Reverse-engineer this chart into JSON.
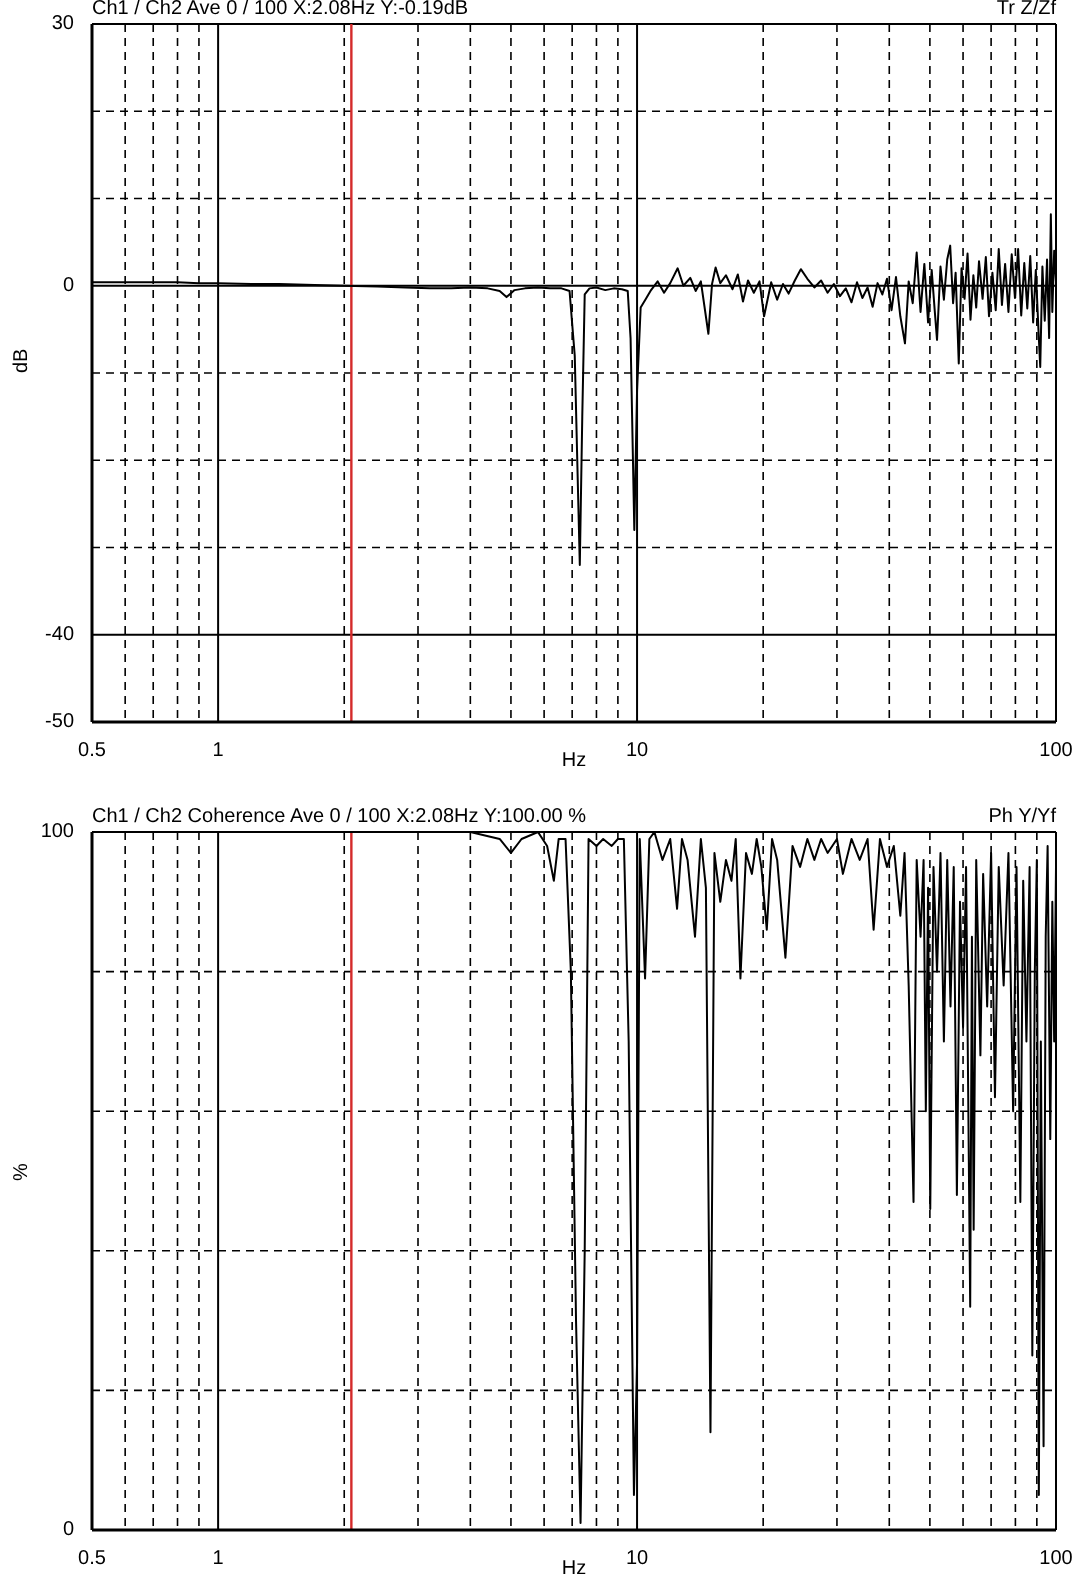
{
  "chart_data": [
    {
      "type": "line",
      "title": "Ch1 / Ch2 Ave 0 / 100 X:2.08Hz Y:-0.19dB",
      "annotations": [
        "Tr Z/Zf"
      ],
      "xlabel": "Hz",
      "ylabel": "dB",
      "log": "x",
      "grid": true,
      "color": "#000000",
      "xlim": [
        0.5,
        100
      ],
      "xticks": [
        0.5,
        {
          "value": 0.6,
          "label": null
        },
        {
          "value": 0.7,
          "label": null
        },
        {
          "value": 0.8,
          "label": null
        },
        {
          "value": 0.9,
          "label": null
        },
        1,
        {
          "value": 2,
          "label": null
        },
        {
          "value": 3,
          "label": null
        },
        {
          "value": 4,
          "label": null
        },
        {
          "value": 5,
          "label": null
        },
        {
          "value": 6,
          "label": null
        },
        {
          "value": 7,
          "label": null
        },
        {
          "value": 8,
          "label": null
        },
        {
          "value": 9,
          "label": null
        },
        10,
        {
          "value": 20,
          "label": null
        },
        {
          "value": 30,
          "label": null
        },
        {
          "value": 40,
          "label": null
        },
        {
          "value": 50,
          "label": null
        },
        {
          "value": 60,
          "label": null
        },
        {
          "value": 70,
          "label": null
        },
        {
          "value": 80,
          "label": null
        },
        {
          "value": 90,
          "label": null
        },
        100
      ],
      "ylim": [
        -50,
        30
      ],
      "yticks": [
        -50,
        -40,
        {
          "value": -30,
          "label": null
        },
        {
          "value": -20,
          "label": null
        },
        {
          "value": -10,
          "label": null
        },
        0,
        {
          "value": 10,
          "label": null
        },
        {
          "value": 20,
          "label": null
        },
        30
      ],
      "ref_lines": [
        {
          "axis": "x",
          "value": 2.08,
          "color": "#d42a2a"
        }
      ],
      "x": [
        0.5,
        0.55,
        0.6,
        0.7,
        0.8,
        0.9,
        1,
        1.2,
        1.4,
        1.7,
        2.0,
        2.4,
        2.8,
        3.2,
        3.6,
        4.0,
        4.4,
        4.7,
        4.88,
        5.1,
        5.4,
        5.8,
        6.2,
        6.6,
        6.9,
        7.1,
        7.3,
        7.4,
        7.5,
        7.7,
        8.0,
        8.4,
        8.8,
        9.2,
        9.5,
        9.65,
        9.85,
        10.0,
        10.2,
        10.5,
        10.8,
        11.2,
        11.6,
        12.0,
        12.5,
        12.9,
        13.4,
        13.8,
        14.2,
        14.8,
        15.1,
        15.4,
        15.8,
        16.3,
        16.9,
        17.4,
        17.9,
        18.4,
        19,
        19.6,
        20.1,
        20.9,
        21.6,
        22.3,
        23,
        23.8,
        24.6,
        25.5,
        26.5,
        27.5,
        28.5,
        29.5,
        30.5,
        31.5,
        32.5,
        33.5,
        34.5,
        35.5,
        36.5,
        37.5,
        38.5,
        39.5,
        40.5,
        41.5,
        42.5,
        43.6,
        44.5,
        45.5,
        46.5,
        47.5,
        48.5,
        49.5,
        50.5,
        51.3,
        52,
        53,
        54,
        55,
        55.9,
        56.8,
        57.6,
        58.6,
        59.5,
        60.5,
        61.5,
        62.5,
        63.5,
        64.5,
        65.5,
        66.8,
        68,
        69.2,
        70.5,
        71.8,
        73,
        74.3,
        75.6,
        77,
        78.4,
        79.8,
        81.2,
        82.6,
        84,
        85.4,
        86.8,
        88.2,
        89.5,
        90.8,
        91.7,
        92.8,
        94,
        95.2,
        96.3,
        97.2,
        98,
        99,
        100
      ],
      "values": [
        0.4,
        0.4,
        0.4,
        0.4,
        0.4,
        0.3,
        0.3,
        0.2,
        0.2,
        0.1,
        0,
        -0.1,
        -0.2,
        -0.3,
        -0.3,
        -0.2,
        -0.3,
        -0.6,
        -1.3,
        -0.5,
        -0.3,
        -0.2,
        -0.3,
        -0.3,
        -0.6,
        -8,
        -32,
        -15,
        -1,
        -0.3,
        -0.2,
        -0.5,
        -0.3,
        -0.4,
        -0.6,
        -6,
        -28,
        -12,
        -2.5,
        -1.5,
        -0.5,
        0.5,
        -0.8,
        0.3,
        2.0,
        0,
        0.9,
        -0.6,
        0.5,
        -5.5,
        0.2,
        2.1,
        0.3,
        1.2,
        -0.4,
        1.3,
        -1.8,
        0.6,
        -0.8,
        0.5,
        -3.5,
        0.4,
        -1.6,
        0.2,
        -0.9,
        0.6,
        1.9,
        0.8,
        -0.2,
        0.6,
        -0.8,
        0.2,
        -1.2,
        -0.3,
        -1.9,
        0.4,
        -1.4,
        -0.2,
        -2.4,
        0.3,
        -1,
        0.8,
        -2.8,
        1,
        -3.5,
        -6.6,
        0.5,
        -2,
        3.8,
        -3,
        2.5,
        -4.2,
        1.8,
        -2.6,
        -6.2,
        2.2,
        -1.6,
        3,
        4.6,
        -2,
        1.5,
        -8.9,
        2,
        -1.5,
        3.7,
        -3.9,
        1.2,
        -2.5,
        2.8,
        -1.5,
        3.3,
        -3.5,
        1.5,
        -2.8,
        4.2,
        -2.2,
        2.5,
        -3,
        3.6,
        -1.4,
        4.2,
        -3.4,
        2.6,
        -2.6,
        3.4,
        -4.2,
        1.8,
        -5,
        -9.3,
        2.2,
        -4,
        3,
        -6,
        8.2,
        -3,
        4,
        0.5
      ]
    },
    {
      "type": "line",
      "title": "Ch1 / Ch2 Coherence Ave 0 / 100 X:2.08Hz Y:100.00 %",
      "annotations": [
        "Ph Y/Yf"
      ],
      "xlabel": "Hz",
      "ylabel": "%",
      "log": "x",
      "grid": true,
      "color": "#000000",
      "xlim": [
        0.5,
        100
      ],
      "xticks": [
        0.5,
        {
          "value": 0.6,
          "label": null
        },
        {
          "value": 0.7,
          "label": null
        },
        {
          "value": 0.8,
          "label": null
        },
        {
          "value": 0.9,
          "label": null
        },
        1,
        {
          "value": 2,
          "label": null
        },
        {
          "value": 3,
          "label": null
        },
        {
          "value": 4,
          "label": null
        },
        {
          "value": 5,
          "label": null
        },
        {
          "value": 6,
          "label": null
        },
        {
          "value": 7,
          "label": null
        },
        {
          "value": 8,
          "label": null
        },
        {
          "value": 9,
          "label": null
        },
        10,
        {
          "value": 20,
          "label": null
        },
        {
          "value": 30,
          "label": null
        },
        {
          "value": 40,
          "label": null
        },
        {
          "value": 50,
          "label": null
        },
        {
          "value": 60,
          "label": null
        },
        {
          "value": 70,
          "label": null
        },
        {
          "value": 80,
          "label": null
        },
        {
          "value": 90,
          "label": null
        },
        100
      ],
      "ylim": [
        0,
        100
      ],
      "yticks": [
        0,
        {
          "value": 20,
          "label": null
        },
        {
          "value": 40,
          "label": null
        },
        {
          "value": 60,
          "label": null
        },
        {
          "value": 80,
          "label": null
        },
        100
      ],
      "ref_lines": [
        {
          "axis": "x",
          "value": 2.08,
          "color": "#d42a2a"
        }
      ],
      "x": [
        0.5,
        1,
        2,
        3,
        4,
        4.7,
        5.0,
        5.3,
        5.8,
        6.1,
        6.33,
        6.5,
        6.75,
        6.95,
        7.15,
        7.33,
        7.5,
        7.66,
        8.0,
        8.3,
        8.7,
        9.0,
        9.3,
        9.55,
        9.83,
        10.0,
        10.15,
        10.45,
        10.7,
        11.0,
        11.5,
        12.0,
        12.46,
        12.8,
        13.2,
        13.75,
        14.2,
        14.6,
        14.97,
        15.3,
        15.8,
        16.3,
        16.8,
        17.2,
        17.65,
        18.2,
        18.8,
        19.3,
        19.8,
        20.4,
        21,
        21.6,
        22.6,
        23.5,
        24.5,
        25.5,
        26.5,
        27.5,
        28.5,
        30,
        31,
        32.5,
        34,
        35.5,
        36.7,
        38,
        39.5,
        41,
        42.5,
        43.5,
        44.5,
        45.7,
        46.5,
        47.5,
        48.3,
        48.9,
        49.5,
        50.1,
        51,
        52,
        53,
        54,
        55,
        56,
        57,
        58,
        59,
        60,
        61,
        62.4,
        63,
        63.6,
        64.5,
        66,
        67,
        68.5,
        70,
        71.5,
        73,
        75,
        77,
        79,
        80.5,
        82.2,
        83.5,
        85,
        86.5,
        87.8,
        89,
        90,
        91,
        92,
        93.4,
        94.5,
        95.5,
        96.9,
        98,
        99,
        100
      ],
      "values": [
        100,
        100,
        100,
        100,
        100,
        99,
        97,
        99,
        100,
        98,
        93,
        99,
        99,
        80,
        30,
        1,
        40,
        99,
        98,
        99,
        98,
        99,
        99,
        70,
        5,
        24,
        99,
        79,
        99,
        100,
        96,
        99,
        89,
        99,
        96,
        85,
        99,
        92,
        14,
        97,
        90,
        96,
        93,
        99,
        79,
        97,
        94,
        99,
        95,
        86,
        99,
        96,
        82,
        98,
        95,
        99,
        96,
        99,
        97,
        99,
        94,
        99,
        96,
        99,
        86,
        99,
        95,
        98,
        88,
        97,
        78,
        47,
        96,
        85,
        96,
        60,
        92,
        46,
        95,
        80,
        97,
        70,
        96,
        75,
        95,
        48,
        90,
        72,
        95,
        32,
        85,
        43,
        96,
        68,
        94,
        75,
        97,
        62,
        95,
        78,
        97,
        60,
        95,
        47,
        93,
        70,
        95,
        25,
        80,
        96,
        5,
        70,
        12,
        85,
        98,
        56,
        90,
        70,
        95
      ]
    }
  ]
}
